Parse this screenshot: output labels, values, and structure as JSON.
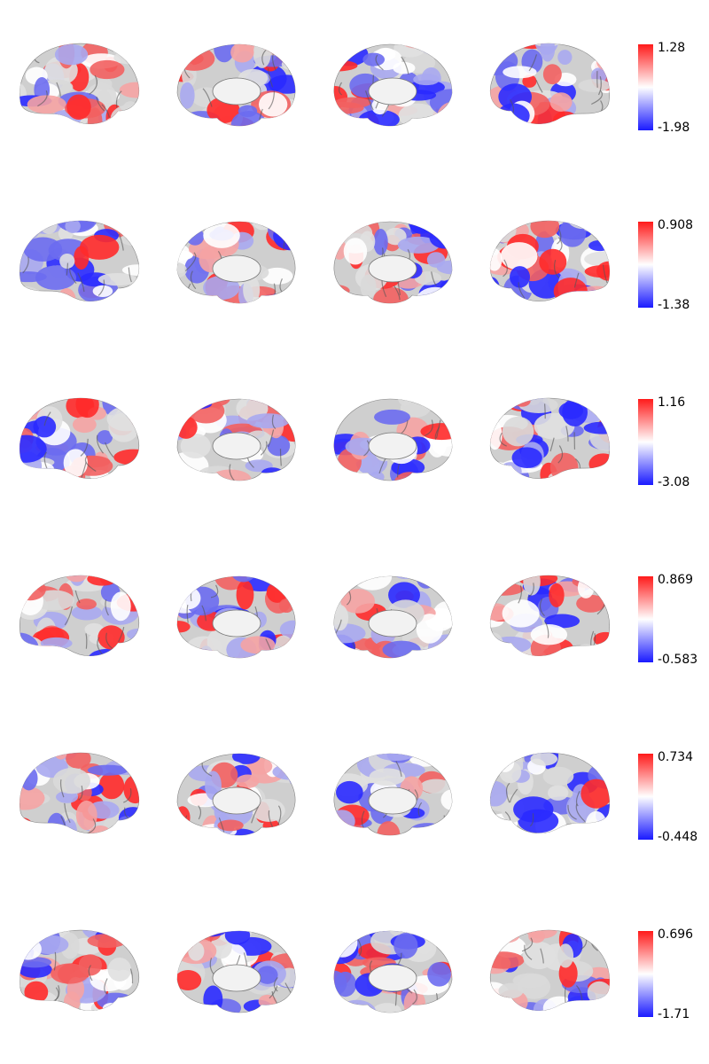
{
  "rows": [
    {
      "colorbar": {
        "max": 1.28,
        "min": -1.98
      }
    },
    {
      "colorbar": {
        "max": 0.908,
        "min": -1.38
      }
    },
    {
      "colorbar": {
        "max": 1.16,
        "min": -3.08
      }
    },
    {
      "colorbar": {
        "max": 0.869,
        "min": -0.583
      }
    },
    {
      "colorbar": {
        "max": 0.734,
        "min": -0.448
      }
    },
    {
      "colorbar": {
        "max": 0.696,
        "min": -1.71
      }
    }
  ]
}
